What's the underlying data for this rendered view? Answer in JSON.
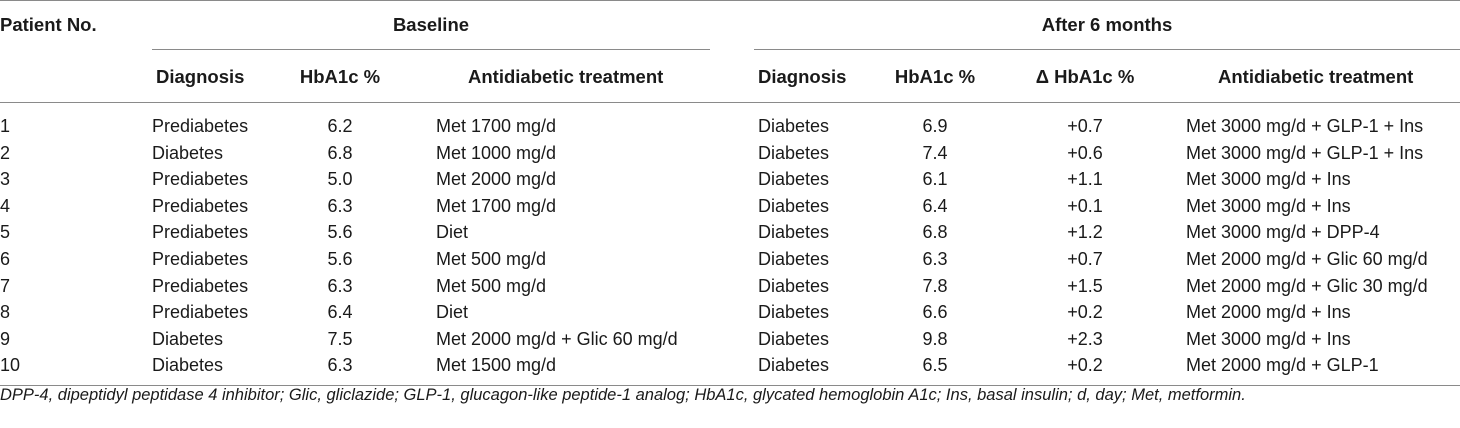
{
  "table": {
    "header": {
      "patient_no": "Patient No.",
      "group_baseline": "Baseline",
      "group_after": "After 6 months",
      "baseline": {
        "diagnosis": "Diagnosis",
        "hba1c": "HbA1c %",
        "treatment": "Antidiabetic treatment"
      },
      "after": {
        "diagnosis": "Diagnosis",
        "hba1c": "HbA1c %",
        "delta_hba1c": "Δ HbA1c %",
        "treatment": "Antidiabetic treatment"
      }
    },
    "rows": [
      {
        "no": "1",
        "b_diag": "Prediabetes",
        "b_hba1c": "6.2",
        "b_treat": "Met 1700 mg/d",
        "a_diag": "Diabetes",
        "a_hba1c": "6.9",
        "delta": "+0.7",
        "a_treat": "Met 3000 mg/d + GLP-1 + Ins"
      },
      {
        "no": "2",
        "b_diag": "Diabetes",
        "b_hba1c": "6.8",
        "b_treat": "Met 1000 mg/d",
        "a_diag": "Diabetes",
        "a_hba1c": "7.4",
        "delta": "+0.6",
        "a_treat": "Met 3000 mg/d + GLP-1 + Ins"
      },
      {
        "no": "3",
        "b_diag": "Prediabetes",
        "b_hba1c": "5.0",
        "b_treat": "Met 2000 mg/d",
        "a_diag": "Diabetes",
        "a_hba1c": "6.1",
        "delta": "+1.1",
        "a_treat": "Met 3000 mg/d + Ins"
      },
      {
        "no": "4",
        "b_diag": "Prediabetes",
        "b_hba1c": "6.3",
        "b_treat": "Met 1700 mg/d",
        "a_diag": "Diabetes",
        "a_hba1c": "6.4",
        "delta": "+0.1",
        "a_treat": "Met 3000 mg/d + Ins"
      },
      {
        "no": "5",
        "b_diag": "Prediabetes",
        "b_hba1c": "5.6",
        "b_treat": "Diet",
        "a_diag": "Diabetes",
        "a_hba1c": "6.8",
        "delta": "+1.2",
        "a_treat": "Met 3000 mg/d + DPP-4"
      },
      {
        "no": "6",
        "b_diag": "Prediabetes",
        "b_hba1c": "5.6",
        "b_treat": "Met 500 mg/d",
        "a_diag": "Diabetes",
        "a_hba1c": "6.3",
        "delta": "+0.7",
        "a_treat": "Met 2000 mg/d + Glic 60 mg/d"
      },
      {
        "no": "7",
        "b_diag": "Prediabetes",
        "b_hba1c": "6.3",
        "b_treat": "Met 500 mg/d",
        "a_diag": "Diabetes",
        "a_hba1c": "7.8",
        "delta": "+1.5",
        "a_treat": "Met 2000 mg/d + Glic 30 mg/d"
      },
      {
        "no": "8",
        "b_diag": "Prediabetes",
        "b_hba1c": "6.4",
        "b_treat": "Diet",
        "a_diag": "Diabetes",
        "a_hba1c": "6.6",
        "delta": "+0.2",
        "a_treat": "Met 2000 mg/d + Ins"
      },
      {
        "no": "9",
        "b_diag": "Diabetes",
        "b_hba1c": "7.5",
        "b_treat": "Met 2000 mg/d + Glic 60 mg/d",
        "a_diag": "Diabetes",
        "a_hba1c": "9.8",
        "delta": "+2.3",
        "a_treat": "Met 3000 mg/d + Ins"
      },
      {
        "no": "10",
        "b_diag": "Diabetes",
        "b_hba1c": "6.3",
        "b_treat": "Met 1500 mg/d",
        "a_diag": "Diabetes",
        "a_hba1c": "6.5",
        "delta": "+0.2",
        "a_treat": "Met 2000 mg/d + GLP-1"
      }
    ]
  },
  "footnote": "DPP-4, dipeptidyl peptidase 4 inhibitor; Glic, gliclazide; GLP-1, glucagon-like peptide-1 analog; HbA1c, glycated hemoglobin A1c; Ins, basal insulin; d, day; Met, metformin."
}
